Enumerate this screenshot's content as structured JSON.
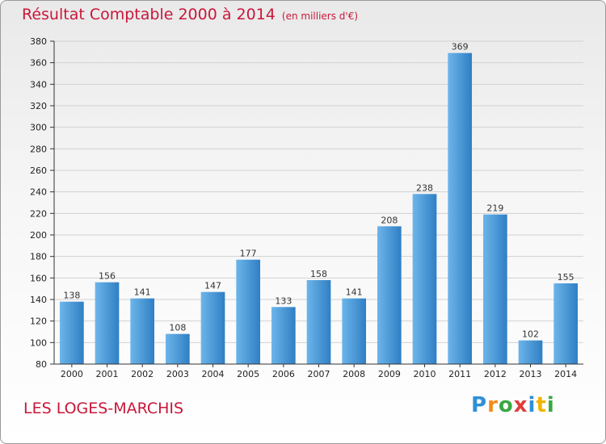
{
  "header": {
    "title": "Résultat Comptable 2000 à 2014",
    "subtitle": "(en milliers d'€)"
  },
  "footer": {
    "place": "LES LOGES-MARCHIS",
    "logo_letters": [
      "P",
      "r",
      "o",
      "x",
      "i",
      "t",
      "i"
    ],
    "logo_colors": [
      "#2f8fd6",
      "#f28c1c",
      "#3aa843",
      "#e23b3b",
      "#2f8fd6",
      "#f0b400",
      "#3aa843"
    ]
  },
  "chart_data": {
    "type": "bar",
    "title": "Résultat Comptable 2000 à 2014",
    "subtitle": "(en milliers d'€)",
    "categories": [
      "2000",
      "2001",
      "2002",
      "2003",
      "2004",
      "2005",
      "2006",
      "2007",
      "2008",
      "2009",
      "2010",
      "2011",
      "2012",
      "2013",
      "2014"
    ],
    "values": [
      138,
      156,
      141,
      108,
      147,
      177,
      133,
      158,
      141,
      208,
      238,
      369,
      219,
      102,
      155
    ],
    "ylim": [
      80,
      380
    ],
    "yticks": [
      80,
      100,
      120,
      140,
      160,
      180,
      200,
      220,
      240,
      260,
      280,
      300,
      320,
      340,
      360,
      380
    ],
    "grid": true,
    "colors": {
      "bar_light": "#6db5ea",
      "bar_dark": "#2f7fc4",
      "grid": "#d2d2d2",
      "axis": "#333333"
    }
  }
}
